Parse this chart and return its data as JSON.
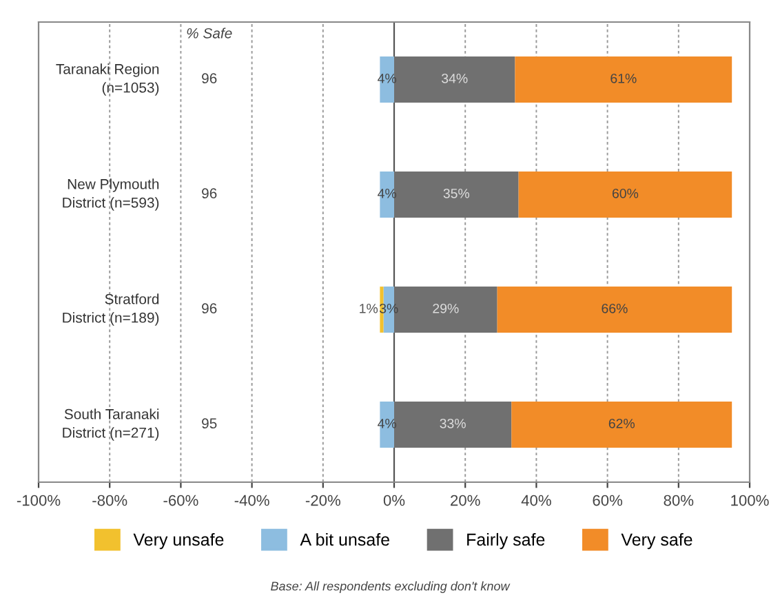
{
  "chart_data": {
    "type": "bar",
    "orientation": "horizontal",
    "stacked": true,
    "categories": [
      "Taranaki Region\n(n=1053)",
      "New Plymouth\nDistrict (n=593)",
      "Stratford\nDistrict (n=189)",
      "South Taranaki\nDistrict (n=271)"
    ],
    "series": [
      {
        "name": "Very unsafe",
        "color": "#f2c12e",
        "values": [
          null,
          null,
          1,
          null
        ],
        "base": [
          null,
          null,
          -4,
          null
        ],
        "value_labels": [
          null,
          null,
          "1%",
          null
        ]
      },
      {
        "name": "A bit unsafe",
        "color": "#8dbde0",
        "values": [
          4,
          4,
          3,
          4
        ],
        "base": [
          -4,
          -4,
          -3,
          -4
        ],
        "value_labels": [
          "4%",
          "4%",
          "3%",
          "4%"
        ]
      },
      {
        "name": "Fairly safe",
        "color": "#707070",
        "values": [
          34,
          35,
          29,
          33
        ],
        "value_labels": [
          "34%",
          "35%",
          "29%",
          "33%"
        ]
      },
      {
        "name": "Very safe",
        "color": "#f28c28",
        "values": [
          61,
          60,
          66,
          62
        ],
        "value_labels": [
          "61%",
          "60%",
          "66%",
          "62%"
        ]
      }
    ],
    "xlim": [
      -100,
      100
    ],
    "xticks": [
      {
        "value": -100,
        "label": "-100%"
      },
      {
        "value": -80,
        "label": "-80%"
      },
      {
        "value": -60,
        "label": "-60%"
      },
      {
        "value": -40,
        "label": "-40%"
      },
      {
        "value": -20,
        "label": "-20%"
      },
      {
        "value": 0,
        "label": "0%"
      },
      {
        "value": 20,
        "label": "20%"
      },
      {
        "value": 40,
        "label": "40%"
      },
      {
        "value": 60,
        "label": "60%"
      },
      {
        "value": 80,
        "label": "80%"
      },
      {
        "value": 100,
        "label": "100%"
      }
    ],
    "grid": "x",
    "legend": "bottom",
    "annotations": [
      "% Safe",
      "96",
      "96",
      "96",
      "95",
      "Base: All respondents excluding don't know"
    ]
  }
}
